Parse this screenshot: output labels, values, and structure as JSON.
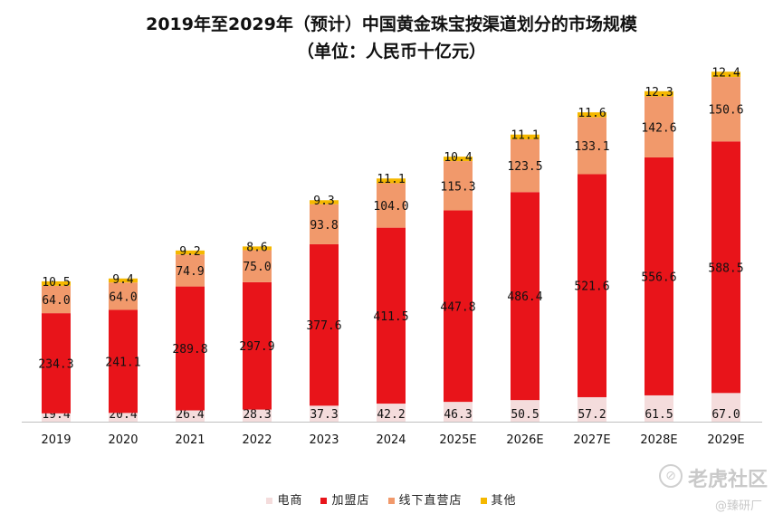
{
  "title_line1": "2019年至2029年（预计）中国黄金珠宝按渠道划分的市场规模",
  "title_line2": "（单位：人民币十亿元）",
  "watermark": {
    "brand": "老虎社区",
    "handle": "@臻研厂",
    "logo_glyph": "⊘"
  },
  "chart_data": {
    "type": "bar",
    "stacked": true,
    "title": "2019年至2029年（预计）中国黄金珠宝按渠道划分的市场规模",
    "subtitle": "（单位：人民币十亿元）",
    "categories": [
      "2019",
      "2020",
      "2021",
      "2022",
      "2023",
      "2024",
      "2025E",
      "2026E",
      "2027E",
      "2028E",
      "2029E"
    ],
    "series": [
      {
        "name": "电商",
        "color": "#f4dcdc",
        "values": [
          19.4,
          20.4,
          26.4,
          28.3,
          37.3,
          42.2,
          46.3,
          50.5,
          57.2,
          61.5,
          67.0
        ]
      },
      {
        "name": "加盟店",
        "color": "#e8141a",
        "values": [
          234.3,
          241.1,
          289.8,
          297.9,
          377.6,
          411.5,
          447.8,
          486.4,
          521.6,
          556.6,
          588.5
        ]
      },
      {
        "name": "线下直营店",
        "color": "#f1996b",
        "values": [
          64.0,
          64.0,
          74.9,
          75.0,
          93.8,
          104.0,
          115.3,
          123.5,
          133.1,
          142.6,
          150.6
        ]
      },
      {
        "name": "其他",
        "color": "#f5b800",
        "values": [
          10.5,
          9.4,
          9.2,
          8.6,
          9.3,
          11.1,
          10.4,
          11.1,
          11.6,
          12.3,
          12.4
        ]
      }
    ],
    "legend_position": "bottom",
    "grid": false
  }
}
